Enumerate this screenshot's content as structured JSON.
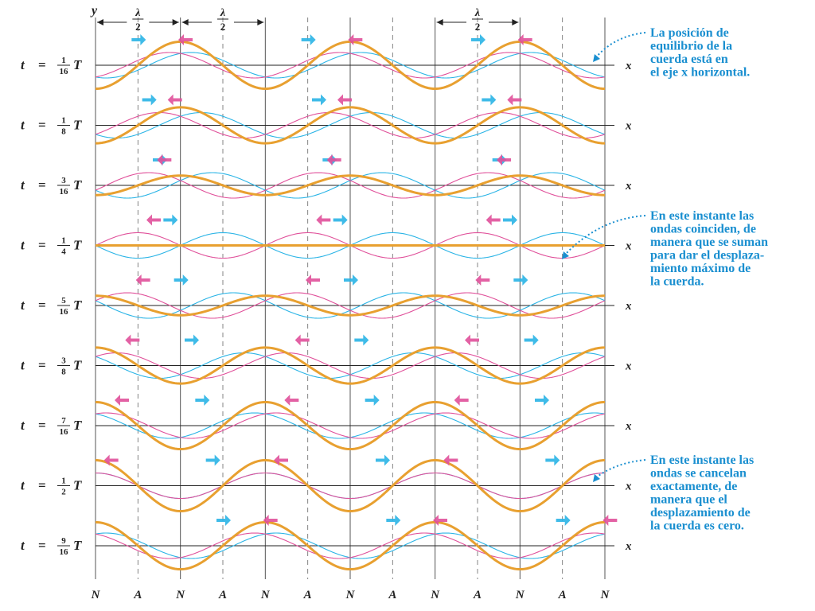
{
  "axis": {
    "y_label": "y",
    "x_label": "x",
    "lambda": "λ",
    "half_denominator": "2",
    "node_label": "N",
    "antinode_label": "A"
  },
  "time_label": {
    "t": "t",
    "equals": "=",
    "T": "T"
  },
  "rows": [
    {
      "num": "1",
      "den": "16"
    },
    {
      "num": "1",
      "den": "8"
    },
    {
      "num": "3",
      "den": "16"
    },
    {
      "num": "1",
      "den": "4"
    },
    {
      "num": "5",
      "den": "16"
    },
    {
      "num": "3",
      "den": "8"
    },
    {
      "num": "7",
      "den": "16"
    },
    {
      "num": "1",
      "den": "2"
    },
    {
      "num": "9",
      "den": "16"
    }
  ],
  "bottom_labels": [
    "N",
    "A",
    "N",
    "A",
    "N",
    "A",
    "N",
    "A",
    "N",
    "A",
    "N",
    "A",
    "N"
  ],
  "annotations": [
    {
      "lines": [
        "La posición de",
        "equilibrio de la",
        "cuerda está en",
        "el eje x horizontal."
      ]
    },
    {
      "lines": [
        "En este instante las",
        "ondas coinciden, de",
        "manera que se suman",
        "para dar el desplaza-",
        "miento máximo de",
        "la cuerda."
      ]
    },
    {
      "lines": [
        "En este instante las",
        "ondas se cancelan",
        "exactamente, de",
        "manera que el",
        "desplazamiento de",
        "la cuerda es cero."
      ]
    }
  ],
  "colors": {
    "standing": "#e8a030",
    "right_wave": "#2ab4e6",
    "left_wave": "#e0509a",
    "annotation": "#1a8fd0",
    "axis": "#222222"
  }
}
